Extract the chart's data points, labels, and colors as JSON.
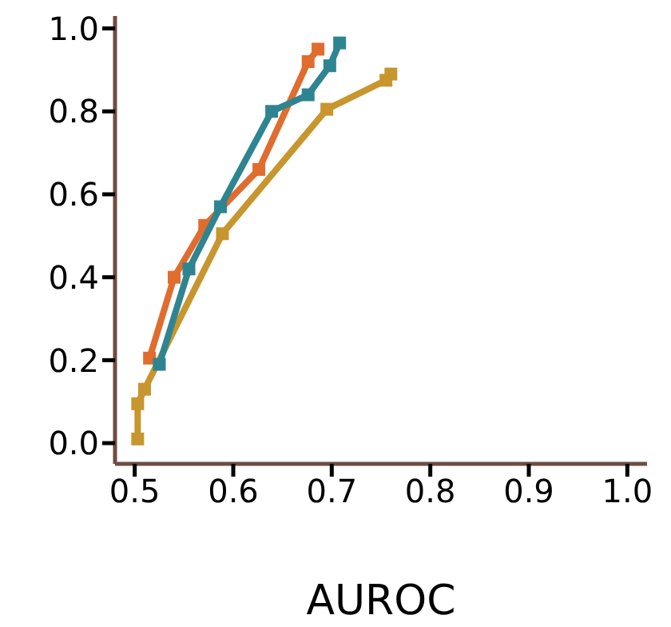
{
  "chart_data": {
    "type": "line",
    "xlabel": "AUROC",
    "marker": "square",
    "line_style": "solid",
    "grid": false,
    "legend": false,
    "xlim": [
      0.48,
      1.02
    ],
    "xticks": [
      {
        "value": 0.5,
        "label": "0.5"
      },
      {
        "value": 0.6,
        "label": "0.6"
      },
      {
        "value": 0.7,
        "label": "0.7"
      },
      {
        "value": 0.8,
        "label": "0.8"
      },
      {
        "value": 0.9,
        "label": "0.9"
      },
      {
        "value": 1.0,
        "label": "1.0"
      }
    ],
    "ylim": [
      -0.05,
      1.03
    ],
    "yticks": [
      {
        "value": 0,
        "label": "0.0"
      },
      {
        "value": 0.2,
        "label": "0.2"
      },
      {
        "value": 0.4,
        "label": "0.4"
      },
      {
        "value": 0.6,
        "label": "0.6"
      },
      {
        "value": 0.8,
        "label": "0.8"
      },
      {
        "value": 1.0,
        "label": "1.0"
      }
    ],
    "series": [
      {
        "color": "#c8962e",
        "x": [
          0.503,
          0.503,
          0.51,
          0.589,
          0.695,
          0.755,
          0.76
        ],
        "values": [
          0.01,
          0.095,
          0.13,
          0.505,
          0.805,
          0.875,
          0.89
        ]
      },
      {
        "color": "#e06c2e",
        "x": [
          0.515,
          0.54,
          0.571,
          0.626,
          0.676,
          0.686
        ],
        "values": [
          0.205,
          0.4,
          0.525,
          0.66,
          0.92,
          0.95
        ]
      },
      {
        "color": "#2e8591",
        "x": [
          0.525,
          0.555,
          0.587,
          0.639,
          0.676,
          0.698,
          0.708
        ],
        "values": [
          0.19,
          0.42,
          0.57,
          0.8,
          0.84,
          0.91,
          0.965
        ]
      }
    ]
  }
}
